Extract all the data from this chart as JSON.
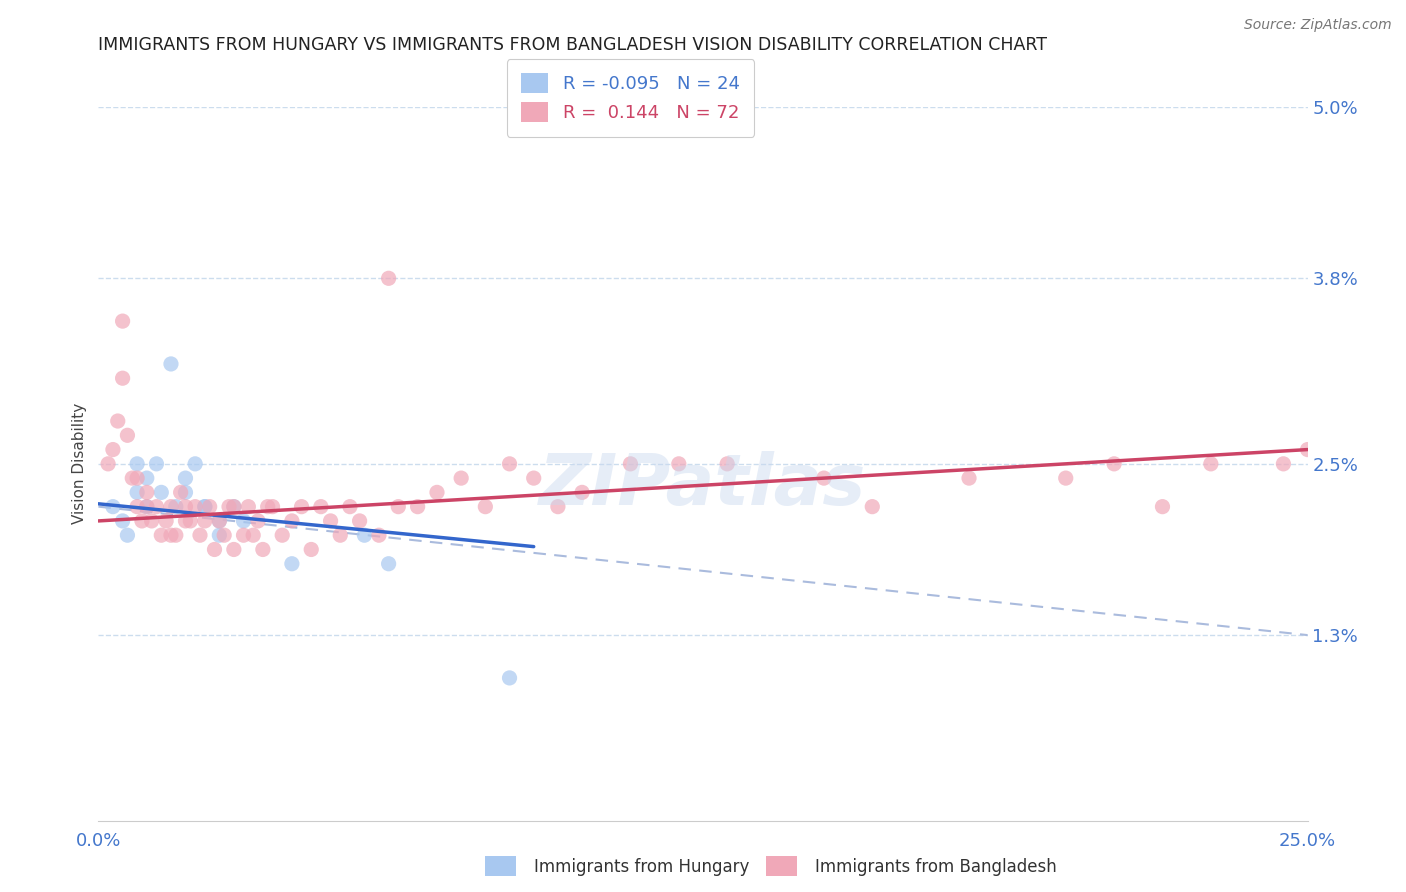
{
  "title": "IMMIGRANTS FROM HUNGARY VS IMMIGRANTS FROM BANGLADESH VISION DISABILITY CORRELATION CHART",
  "source": "Source: ZipAtlas.com",
  "ylabel": "Vision Disability",
  "xlim": [
    0.0,
    0.25
  ],
  "ylim": [
    0.0,
    0.05
  ],
  "yticks": [
    0.013,
    0.025,
    0.038,
    0.05
  ],
  "ytick_labels": [
    "1.3%",
    "2.5%",
    "3.8%",
    "5.0%"
  ],
  "xticks": [
    0.0,
    0.25
  ],
  "xtick_labels": [
    "0.0%",
    "25.0%"
  ],
  "hungary_R": -0.095,
  "hungary_N": 24,
  "bangladesh_R": 0.144,
  "bangladesh_N": 72,
  "hungary_color": "#a8c8f0",
  "bangladesh_color": "#f0a8b8",
  "hungary_trend_color": "#3366cc",
  "bangladesh_trend_color": "#cc4466",
  "dash_color": "#aabbdd",
  "title_fontsize": 12.5,
  "source_fontsize": 10,
  "axis_label_fontsize": 11,
  "tick_label_color": "#4477cc",
  "legend_label_color": "#4477cc",
  "background_color": "#ffffff",
  "grid_color": "#ccddee",
  "hungary_scatter_x": [
    0.003,
    0.005,
    0.006,
    0.008,
    0.008,
    0.01,
    0.01,
    0.012,
    0.013,
    0.015,
    0.016,
    0.018,
    0.018,
    0.02,
    0.022,
    0.022,
    0.025,
    0.025,
    0.028,
    0.03,
    0.04,
    0.055,
    0.06,
    0.085
  ],
  "hungary_scatter_y": [
    0.022,
    0.021,
    0.02,
    0.023,
    0.025,
    0.022,
    0.024,
    0.025,
    0.023,
    0.032,
    0.022,
    0.024,
    0.023,
    0.025,
    0.022,
    0.022,
    0.02,
    0.021,
    0.022,
    0.021,
    0.018,
    0.02,
    0.018,
    0.01
  ],
  "bangladesh_scatter_x": [
    0.002,
    0.003,
    0.004,
    0.005,
    0.005,
    0.006,
    0.007,
    0.008,
    0.008,
    0.009,
    0.01,
    0.01,
    0.011,
    0.012,
    0.013,
    0.014,
    0.015,
    0.015,
    0.016,
    0.017,
    0.018,
    0.018,
    0.019,
    0.02,
    0.021,
    0.022,
    0.023,
    0.024,
    0.025,
    0.026,
    0.027,
    0.028,
    0.028,
    0.03,
    0.031,
    0.032,
    0.033,
    0.034,
    0.035,
    0.036,
    0.038,
    0.04,
    0.042,
    0.044,
    0.046,
    0.048,
    0.05,
    0.052,
    0.054,
    0.058,
    0.062,
    0.066,
    0.07,
    0.075,
    0.08,
    0.085,
    0.09,
    0.095,
    0.1,
    0.11,
    0.12,
    0.13,
    0.15,
    0.16,
    0.18,
    0.2,
    0.21,
    0.22,
    0.23,
    0.245,
    0.25,
    0.06
  ],
  "bangladesh_scatter_y": [
    0.025,
    0.026,
    0.028,
    0.031,
    0.035,
    0.027,
    0.024,
    0.022,
    0.024,
    0.021,
    0.022,
    0.023,
    0.021,
    0.022,
    0.02,
    0.021,
    0.022,
    0.02,
    0.02,
    0.023,
    0.022,
    0.021,
    0.021,
    0.022,
    0.02,
    0.021,
    0.022,
    0.019,
    0.021,
    0.02,
    0.022,
    0.022,
    0.019,
    0.02,
    0.022,
    0.02,
    0.021,
    0.019,
    0.022,
    0.022,
    0.02,
    0.021,
    0.022,
    0.019,
    0.022,
    0.021,
    0.02,
    0.022,
    0.021,
    0.02,
    0.022,
    0.022,
    0.023,
    0.024,
    0.022,
    0.025,
    0.024,
    0.022,
    0.023,
    0.025,
    0.025,
    0.025,
    0.024,
    0.022,
    0.024,
    0.024,
    0.025,
    0.022,
    0.025,
    0.025,
    0.026,
    0.038
  ],
  "hungary_trend_x0": 0.0,
  "hungary_trend_y0": 0.0222,
  "hungary_trend_x1": 0.09,
  "hungary_trend_y1": 0.0192,
  "bangladesh_trend_x0": 0.0,
  "bangladesh_trend_y0": 0.021,
  "bangladesh_trend_x1": 0.25,
  "bangladesh_trend_y1": 0.026,
  "dash_trend_x0": 0.0,
  "dash_trend_y0": 0.022,
  "dash_trend_x1": 0.25,
  "dash_trend_y1": 0.013
}
